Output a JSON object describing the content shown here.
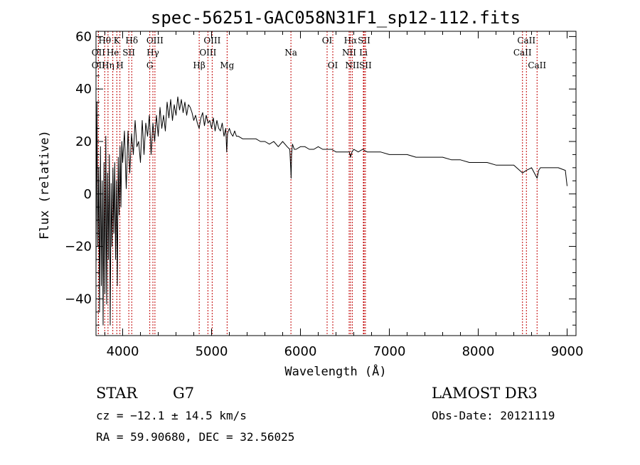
{
  "chart_data": {
    "type": "line",
    "title": "spec-56251-GAC058N31F1_sp12-112.fits",
    "xlabel": "Wavelength (Å)",
    "ylabel": "Flux (relative)",
    "xlim": [
      3700,
      9100
    ],
    "ylim": [
      -54,
      62
    ],
    "xticks": [
      4000,
      5000,
      6000,
      7000,
      8000,
      9000
    ],
    "yticks": [
      -40,
      -20,
      0,
      20,
      40,
      60
    ],
    "grid": false,
    "series": [
      {
        "name": "flux",
        "x": [
          3700,
          3710,
          3720,
          3730,
          3740,
          3750,
          3760,
          3770,
          3780,
          3790,
          3800,
          3810,
          3820,
          3830,
          3840,
          3850,
          3860,
          3870,
          3880,
          3890,
          3900,
          3910,
          3920,
          3930,
          3940,
          3950,
          3960,
          3970,
          3980,
          3990,
          4000,
          4020,
          4040,
          4060,
          4080,
          4100,
          4120,
          4140,
          4160,
          4180,
          4200,
          4220,
          4240,
          4260,
          4280,
          4300,
          4320,
          4340,
          4360,
          4380,
          4400,
          4420,
          4440,
          4460,
          4480,
          4500,
          4520,
          4540,
          4560,
          4580,
          4600,
          4620,
          4640,
          4660,
          4680,
          4700,
          4720,
          4740,
          4760,
          4780,
          4800,
          4820,
          4840,
          4860,
          4880,
          4900,
          4920,
          4940,
          4960,
          4980,
          5000,
          5020,
          5040,
          5060,
          5080,
          5100,
          5120,
          5140,
          5160,
          5170,
          5180,
          5200,
          5220,
          5240,
          5260,
          5280,
          5300,
          5350,
          5400,
          5450,
          5500,
          5550,
          5600,
          5650,
          5700,
          5750,
          5800,
          5850,
          5880,
          5890,
          5895,
          5900,
          5910,
          5930,
          5950,
          6000,
          6050,
          6100,
          6150,
          6200,
          6250,
          6300,
          6350,
          6400,
          6450,
          6500,
          6550,
          6563,
          6580,
          6600,
          6650,
          6700,
          6750,
          6800,
          6900,
          7000,
          7100,
          7200,
          7300,
          7400,
          7500,
          7600,
          7700,
          7800,
          7900,
          8000,
          8100,
          8200,
          8300,
          8400,
          8498,
          8542,
          8600,
          8662,
          8680,
          8700,
          8800,
          8900,
          8980,
          9000
        ],
        "values": [
          -30,
          35,
          -20,
          10,
          -45,
          18,
          -35,
          5,
          -50,
          12,
          -38,
          22,
          -42,
          8,
          -25,
          15,
          -50,
          4,
          -20,
          10,
          -15,
          12,
          -25,
          5,
          -35,
          14,
          -8,
          18,
          -5,
          20,
          12,
          24,
          2,
          24,
          8,
          23,
          15,
          28,
          18,
          20,
          12,
          28,
          15,
          27,
          22,
          30,
          15,
          27,
          20,
          30,
          22,
          33,
          25,
          30,
          24,
          35,
          29,
          36,
          28,
          34,
          30,
          37,
          32,
          36,
          31,
          35,
          30,
          34,
          33,
          31,
          28,
          30,
          27,
          25,
          29,
          31,
          26,
          30,
          27,
          28,
          25,
          29,
          24,
          28,
          25,
          24,
          27,
          22,
          25,
          16,
          23,
          25,
          23,
          22,
          24,
          22,
          22,
          21,
          21,
          21,
          21,
          20,
          20,
          19,
          20,
          18,
          20,
          18,
          17,
          10,
          6,
          15,
          19,
          17,
          17,
          18,
          18,
          17,
          17,
          18,
          17,
          17,
          17,
          16,
          16,
          16,
          16,
          14,
          16,
          17,
          16,
          17,
          16,
          16,
          16,
          15,
          15,
          15,
          14,
          14,
          14,
          14,
          13,
          13,
          12,
          12,
          12,
          11,
          11,
          11,
          8,
          9,
          10,
          6,
          9,
          10,
          10,
          10,
          9,
          3
        ]
      }
    ],
    "line_markers": [
      {
        "label": "Hθ",
        "wavelength": 3798,
        "row": 1
      },
      {
        "label": "OII",
        "wavelength": 3727,
        "row": 2
      },
      {
        "label": "OII",
        "wavelength": 3727,
        "row": 3
      },
      {
        "label": "Hη",
        "wavelength": 3835,
        "row": 3
      },
      {
        "label": "He",
        "wavelength": 3889,
        "row": 2
      },
      {
        "label": "K",
        "wavelength": 3934,
        "row": 1
      },
      {
        "label": "SII",
        "wavelength": 4069,
        "row": 2
      },
      {
        "label": "H",
        "wavelength": 3969,
        "row": 3
      },
      {
        "label": "Hδ",
        "wavelength": 4102,
        "row": 1
      },
      {
        "label": "OIII",
        "wavelength": 4363,
        "row": 1
      },
      {
        "label": "Hγ",
        "wavelength": 4340,
        "row": 2
      },
      {
        "label": "G",
        "wavelength": 4305,
        "row": 3
      },
      {
        "label": "Hβ",
        "wavelength": 4861,
        "row": 3
      },
      {
        "label": "OIII",
        "wavelength": 5007,
        "row": 1
      },
      {
        "label": "OIII",
        "wavelength": 4959,
        "row": 2
      },
      {
        "label": "Mg",
        "wavelength": 5175,
        "row": 3
      },
      {
        "label": "Na",
        "wavelength": 5893,
        "row": 2
      },
      {
        "label": "OI",
        "wavelength": 6300,
        "row": 1
      },
      {
        "label": "OI",
        "wavelength": 6364,
        "row": 3
      },
      {
        "label": "Hα",
        "wavelength": 6563,
        "row": 1
      },
      {
        "label": "NII",
        "wavelength": 6548,
        "row": 2
      },
      {
        "label": "NII",
        "wavelength": 6583,
        "row": 3
      },
      {
        "label": "SII",
        "wavelength": 6716,
        "row": 1
      },
      {
        "label": "Li",
        "wavelength": 6708,
        "row": 2
      },
      {
        "label": "SII",
        "wavelength": 6731,
        "row": 3
      },
      {
        "label": "CaII",
        "wavelength": 8542,
        "row": 1
      },
      {
        "label": "CaII",
        "wavelength": 8498,
        "row": 2
      },
      {
        "label": "CaII",
        "wavelength": 8662,
        "row": 3
      }
    ]
  },
  "info": {
    "object_class": "STAR",
    "subclass": "G7",
    "survey": "LAMOST DR3",
    "redshift_line": "cz = −12.1 ± 14.5 km/s",
    "obs_date_line": "Obs-Date: 20121119",
    "coords_line": "RA =  59.90680, DEC =  32.56025"
  },
  "colors": {
    "spectrum": "#000000",
    "marker_line": "#c00000",
    "axes": "#000000"
  }
}
